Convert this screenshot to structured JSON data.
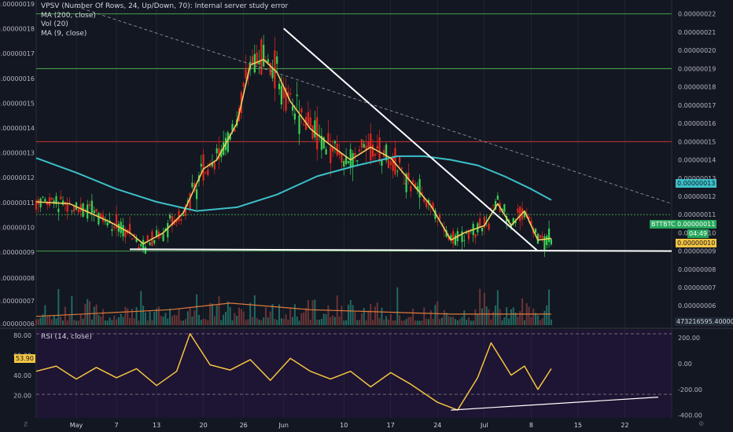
{
  "studies": {
    "line1": "VPSV (Number Of Rows, 24, Up/Down, 70): Internal server study error",
    "line2": "MA (200, close)",
    "line3": "Vol (20)",
    "line4": "MA (9, close)"
  },
  "rsi": {
    "label": "RSI (14, close)",
    "value_tag": "53.90"
  },
  "tags": {
    "ticker": "BTTBTC",
    "ma200": "0.00000013",
    "current": "0.00000011",
    "countdown": "04:49",
    "low": "0.00000010",
    "volume": "473216595.40000000"
  },
  "colors": {
    "background": "#131722",
    "grid": "#2a2e39",
    "up": "#39d353",
    "down": "#e0281f",
    "ma200": "#3cc0c8",
    "ma9": "#f0d060",
    "rsi": "#f5c542",
    "rsi_bg": "#1e1433",
    "trendline": "#ffffff",
    "green_hline": "#4caf50",
    "red_hline": "#e53935"
  },
  "icons": {
    "corner_left": "tradingview-logo-icon",
    "corner_right": "settings-gear-icon"
  },
  "chart_data": [
    {
      "type": "line",
      "pane": "price",
      "x_range": [
        "2019-04-25",
        "2019-07-29"
      ],
      "ylim": [
        8.9e-08,
        2.19e-07
      ],
      "left_axis_ticks": [
        "0.00000019",
        "0.00000018",
        "0.00000017",
        "0.00000016",
        "0.00000015",
        "0.00000014",
        "0.00000013",
        "0.00000012",
        "0.00000011",
        "0.00000010",
        "0.00000009"
      ],
      "right_axis_ticks": [
        "0.00000022",
        "0.00000021",
        "0.00000020",
        "0.00000019",
        "0.00000018",
        "0.00000017",
        "0.00000016",
        "0.00000015",
        "0.00000014",
        "0.00000013",
        "0.00000012",
        "0.00000011",
        "0.00000010",
        "0.00000009"
      ],
      "x_ticks": [
        "May",
        "7",
        "13",
        "20",
        "26",
        "Jun",
        "10",
        "17",
        "24",
        "Jul",
        "8",
        "15",
        "22"
      ],
      "series": [
        {
          "name": "MA (9, close)",
          "x": [
            "2019-04-25",
            "2019-04-30",
            "2019-05-03",
            "2019-05-06",
            "2019-05-09",
            "2019-05-11",
            "2019-05-14",
            "2019-05-17",
            "2019-05-20",
            "2019-05-22",
            "2019-05-25",
            "2019-05-27",
            "2019-05-29",
            "2019-05-31",
            "2019-06-02",
            "2019-06-05",
            "2019-06-08",
            "2019-06-11",
            "2019-06-14",
            "2019-06-17",
            "2019-06-20",
            "2019-06-23",
            "2019-06-26",
            "2019-06-28",
            "2019-07-01",
            "2019-07-03",
            "2019-07-05",
            "2019-07-07",
            "2019-07-09",
            "2019-07-11"
          ],
          "values": [
            1.17e-07,
            1.16e-07,
            1.11e-07,
            1.06e-07,
            1e-07,
            9.4e-08,
            1e-07,
            1.11e-07,
            1.35e-07,
            1.4e-07,
            1.6e-07,
            1.92e-07,
            1.95e-07,
            1.88e-07,
            1.72e-07,
            1.57e-07,
            1.48e-07,
            1.4e-07,
            1.47e-07,
            1.41e-07,
            1.28e-07,
            1.15e-07,
            9.6e-08,
            1e-07,
            1.04e-07,
            1.16e-07,
            1.04e-07,
            1.12e-07,
            9.6e-08,
            9.7e-08
          ]
        },
        {
          "name": "MA (200, close)",
          "x": [
            "2019-04-25",
            "2019-05-01",
            "2019-05-07",
            "2019-05-13",
            "2019-05-19",
            "2019-05-25",
            "2019-05-31",
            "2019-06-06",
            "2019-06-12",
            "2019-06-18",
            "2019-06-22",
            "2019-06-26",
            "2019-06-30",
            "2019-07-04",
            "2019-07-08",
            "2019-07-11"
          ],
          "values": [
            1.41e-07,
            1.33e-07,
            1.24e-07,
            1.17e-07,
            1.12e-07,
            1.14e-07,
            1.21e-07,
            1.31e-07,
            1.37e-07,
            1.42e-07,
            1.42e-07,
            1.4e-07,
            1.37e-07,
            1.31e-07,
            1.24e-07,
            1.18e-07
          ]
        }
      ],
      "horizontal_lines": [
        {
          "color": "green_hline",
          "value": 2.2e-07
        },
        {
          "color": "green_hline",
          "value": 1.9e-07
        },
        {
          "color": "red_hline",
          "value": 1.5e-07
        },
        {
          "color": "green_hline",
          "value": 1.1e-07,
          "style": "dotted"
        },
        {
          "color": "green_hline",
          "value": 9e-08
        }
      ],
      "trendlines": [
        {
          "from": [
            "2019-05-09",
            9.1e-08
          ],
          "to": [
            "2019-07-29",
            9e-08
          ],
          "style": "solid"
        },
        {
          "from": [
            "2019-06-01",
            2.12e-07
          ],
          "to": [
            "2019-07-09",
            9e-08
          ],
          "style": "solid"
        },
        {
          "from": [
            "2019-05-01",
            2.24e-07
          ],
          "to": [
            "2019-07-29",
            1.16e-07
          ],
          "style": "dashed"
        }
      ]
    },
    {
      "type": "bar",
      "pane": "volume",
      "ylim": [
        5.8e-09,
        9e-09
      ],
      "right_axis_ticks": [
        "0.00000008",
        "0.00000007",
        "0.00000006"
      ],
      "left_axis_ticks": [
        "0.00000008",
        "0.00000007",
        "0.00000006"
      ],
      "series": [
        {
          "name": "Vol (20) MA",
          "x": [
            "2019-04-25",
            "2019-05-15",
            "2019-05-24",
            "2019-06-05",
            "2019-06-26",
            "2019-07-11"
          ],
          "values": [
            6.2e-09,
            6.5e-09,
            6.8e-09,
            6.5e-09,
            6.3e-09,
            6.3e-09
          ]
        }
      ]
    },
    {
      "type": "line",
      "pane": "rsi",
      "ylim": [
        -420,
        260
      ],
      "left_axis_ticks": [
        "80.00",
        "60.00",
        "40.00",
        "20.00"
      ],
      "right_axis_ticks": [
        "200.00",
        "0.00",
        "-200.00",
        "-400.00"
      ],
      "series": [
        {
          "name": "RSI (14, close)",
          "x": [
            "2019-04-25",
            "2019-04-28",
            "2019-05-01",
            "2019-05-04",
            "2019-05-07",
            "2019-05-10",
            "2019-05-13",
            "2019-05-16",
            "2019-05-18",
            "2019-05-21",
            "2019-05-24",
            "2019-05-27",
            "2019-05-30",
            "2019-06-02",
            "2019-06-05",
            "2019-06-08",
            "2019-06-11",
            "2019-06-14",
            "2019-06-17",
            "2019-06-20",
            "2019-06-24",
            "2019-06-27",
            "2019-06-30",
            "2019-07-02",
            "2019-07-05",
            "2019-07-07",
            "2019-07-09",
            "2019-07-11"
          ],
          "values": [
            -60,
            -20,
            -120,
            -30,
            -110,
            -40,
            -170,
            -60,
            230,
            -10,
            -50,
            30,
            -130,
            40,
            -60,
            -120,
            -60,
            -180,
            -70,
            -160,
            -300,
            -360,
            -110,
            160,
            -90,
            -20,
            -200,
            -40
          ]
        }
      ],
      "trendlines": [
        {
          "from": [
            "2019-06-26",
            -360
          ],
          "to": [
            "2019-07-27",
            -260
          ],
          "style": "solid"
        }
      ]
    }
  ]
}
